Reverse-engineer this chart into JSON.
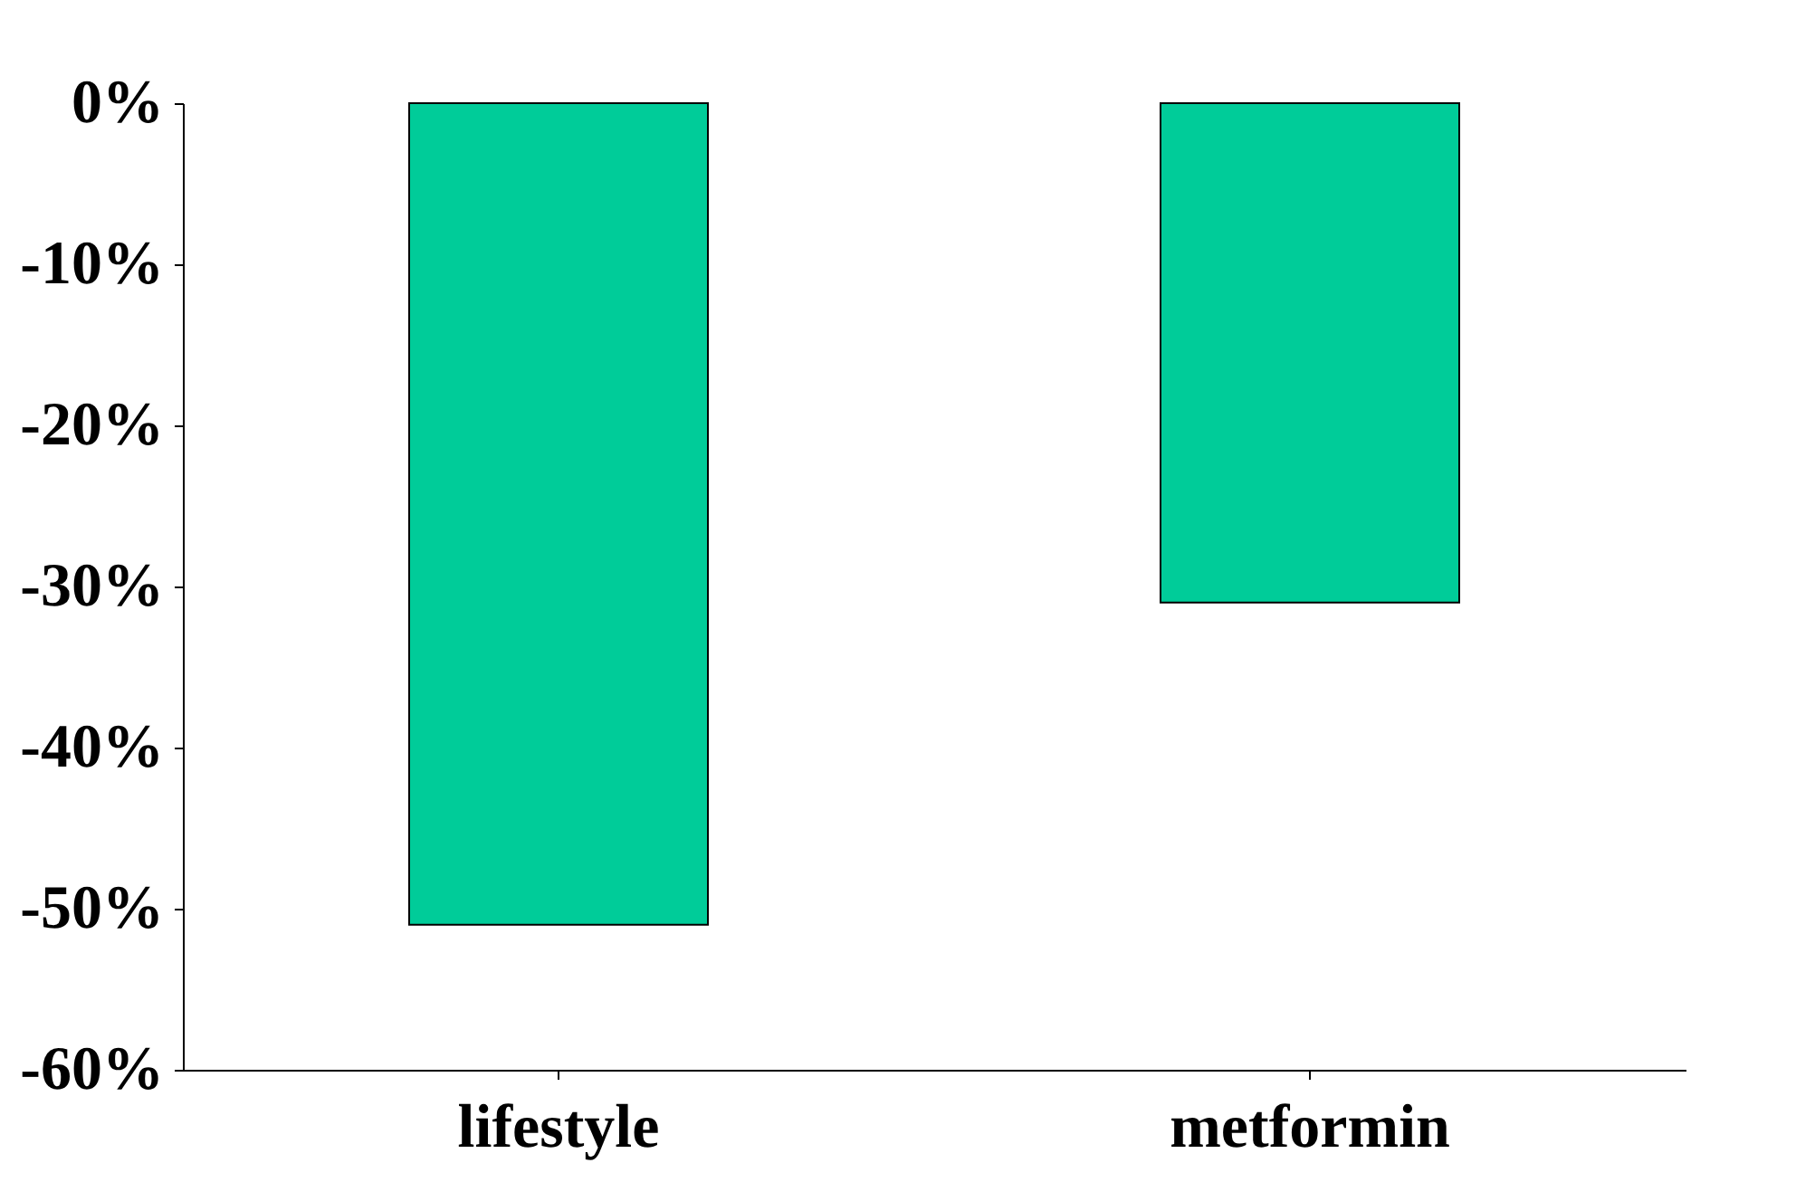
{
  "chart_data": {
    "type": "bar",
    "categories": [
      "lifestyle",
      "metformin"
    ],
    "values": [
      -51,
      -31
    ],
    "color": "#00cc99",
    "ylim": [
      -60,
      0
    ],
    "yticks": [
      {
        "value": 0,
        "label": "0%"
      },
      {
        "value": -10,
        "label": "-10%"
      },
      {
        "value": -20,
        "label": "-20%"
      },
      {
        "value": -30,
        "label": "-30%"
      },
      {
        "value": -40,
        "label": "-40%"
      },
      {
        "value": -50,
        "label": "-50%"
      },
      {
        "value": -60,
        "label": "-60%"
      }
    ],
    "grid": false
  }
}
